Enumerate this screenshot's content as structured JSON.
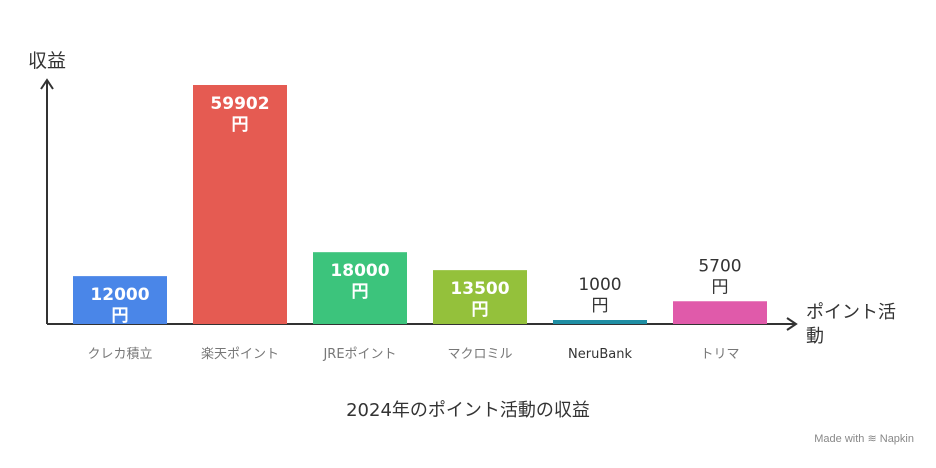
{
  "chart_data": {
    "type": "bar",
    "title": "2024年のポイント活動の収益",
    "xlabel": "ポイント活動",
    "ylabel": "収益",
    "unit": "円",
    "categories": [
      "クレカ積立",
      "楽天ポイント",
      "JREポイント",
      "マクロミル",
      "NeruBank",
      "トリマ"
    ],
    "values": [
      12000,
      59902,
      18000,
      13500,
      1000,
      5700
    ],
    "colors": [
      "#4a86e8",
      "#e55b52",
      "#3cc47c",
      "#94c13b",
      "#1f8ea3",
      "#e05aaa"
    ],
    "ylim": [
      0,
      60000
    ],
    "grid": false,
    "legend": "none"
  },
  "watermark": {
    "prefix": "Made with",
    "brand": "Napkin"
  }
}
